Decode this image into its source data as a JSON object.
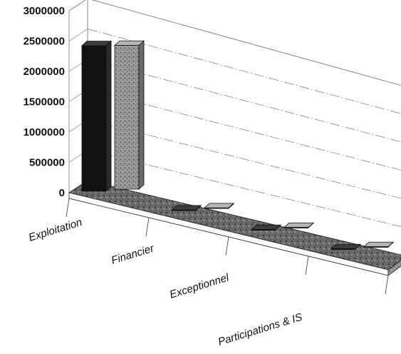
{
  "chart_data": {
    "type": "bar",
    "categories": [
      "Exploitation",
      "Financier",
      "Exceptionnel",
      "Participations & IS"
    ],
    "series": [
      {
        "values": [
          2400000,
          10000,
          5000,
          5000
        ]
      },
      {
        "values": [
          2370000,
          10000,
          5000,
          5000
        ]
      }
    ],
    "y_ticks": [
      "3000000",
      "2500000",
      "2000000",
      "1500000",
      "1000000",
      "500000",
      "0"
    ],
    "ylim": [
      0,
      3000000
    ],
    "grid": true,
    "legend": "none",
    "colors": {
      "series1": "#111111",
      "series2": "#8a8a8a",
      "floor": "#5a5a5a",
      "grid": "#777777"
    }
  }
}
